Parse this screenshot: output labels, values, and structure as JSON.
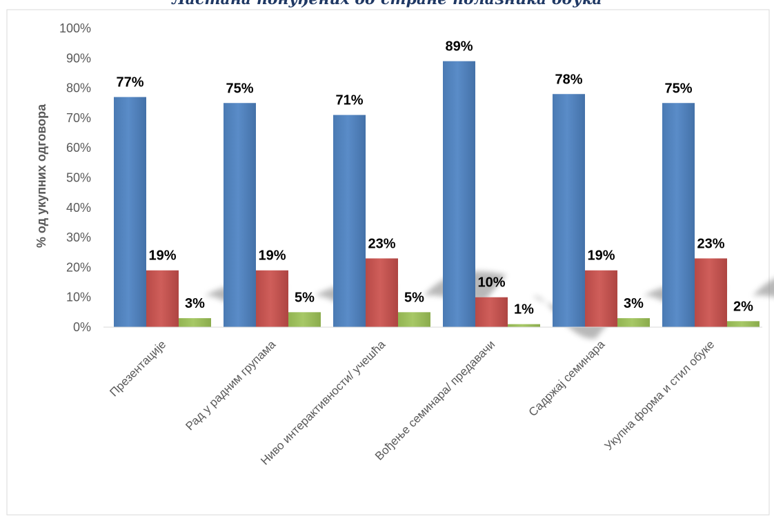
{
  "title": "Ластана понуђених од стране полазника обука",
  "chart_data": {
    "type": "bar",
    "title": "Ластана понуђених од стране полазника обука",
    "xlabel": "",
    "ylabel": "% од укупних одговора",
    "ylim": [
      0,
      100
    ],
    "yticks": [
      "0%",
      "10%",
      "20%",
      "30%",
      "40%",
      "50%",
      "60%",
      "70%",
      "80%",
      "90%",
      "100%"
    ],
    "grid": false,
    "legend": "none",
    "categories": [
      "Презентације",
      "Рад у радним групама",
      "Ниво интерактивности/ учешћа",
      "Вођење семинара/ предавачи",
      "Садржај семинара",
      "Укупна форма и стил обуке"
    ],
    "series": [
      {
        "values": [
          77,
          75,
          71,
          89,
          78,
          75
        ],
        "labels": [
          "77%",
          "75%",
          "71%",
          "89%",
          "78%",
          "75%"
        ],
        "color": "#4f81bd"
      },
      {
        "values": [
          19,
          19,
          23,
          10,
          19,
          23
        ],
        "labels": [
          "19%",
          "19%",
          "23%",
          "10%",
          "19%",
          "23%"
        ],
        "color": "#c0504d"
      },
      {
        "values": [
          3,
          5,
          5,
          1,
          3,
          2
        ],
        "labels": [
          "3%",
          "5%",
          "5%",
          "1%",
          "3%",
          "2%"
        ],
        "color": "#9bbb59"
      }
    ]
  }
}
